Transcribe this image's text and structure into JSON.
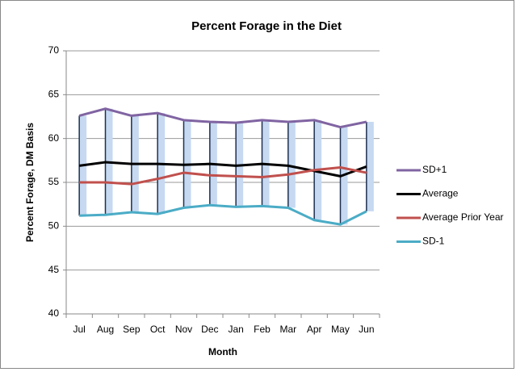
{
  "chart_data": {
    "type": "line",
    "title": "Percent Forage in the Diet",
    "x_label": "Month",
    "y_label": "Percent Forage, DM Basis",
    "categories": [
      "Jul",
      "Aug",
      "Sep",
      "Oct",
      "Nov",
      "Dec",
      "Jan",
      "Feb",
      "Mar",
      "Apr",
      "May",
      "Jun"
    ],
    "series": [
      {
        "name": "SD+1",
        "color": "#8064a2",
        "values": [
          62.6,
          63.4,
          62.6,
          62.9,
          62.1,
          61.9,
          61.8,
          62.1,
          61.9,
          62.1,
          61.3,
          61.9
        ]
      },
      {
        "name": "Average",
        "color": "#000000",
        "values": [
          56.9,
          57.3,
          57.1,
          57.1,
          57.0,
          57.1,
          56.9,
          57.1,
          56.9,
          56.3,
          55.7,
          56.8
        ]
      },
      {
        "name": "Average Prior Year",
        "color": "#c0504d",
        "values": [
          55.0,
          55.0,
          54.8,
          55.4,
          56.1,
          55.8,
          55.7,
          55.6,
          55.9,
          56.4,
          56.7,
          56.1
        ]
      },
      {
        "name": "SD-1",
        "color": "#4bacc6",
        "values": [
          51.2,
          51.3,
          51.6,
          51.4,
          52.1,
          52.4,
          52.2,
          52.3,
          52.1,
          50.7,
          50.2,
          51.7
        ]
      }
    ],
    "ylim": [
      40,
      70
    ],
    "yticks": [
      40,
      45,
      50,
      55,
      60,
      65,
      70
    ],
    "grid": true,
    "legend": "right"
  }
}
